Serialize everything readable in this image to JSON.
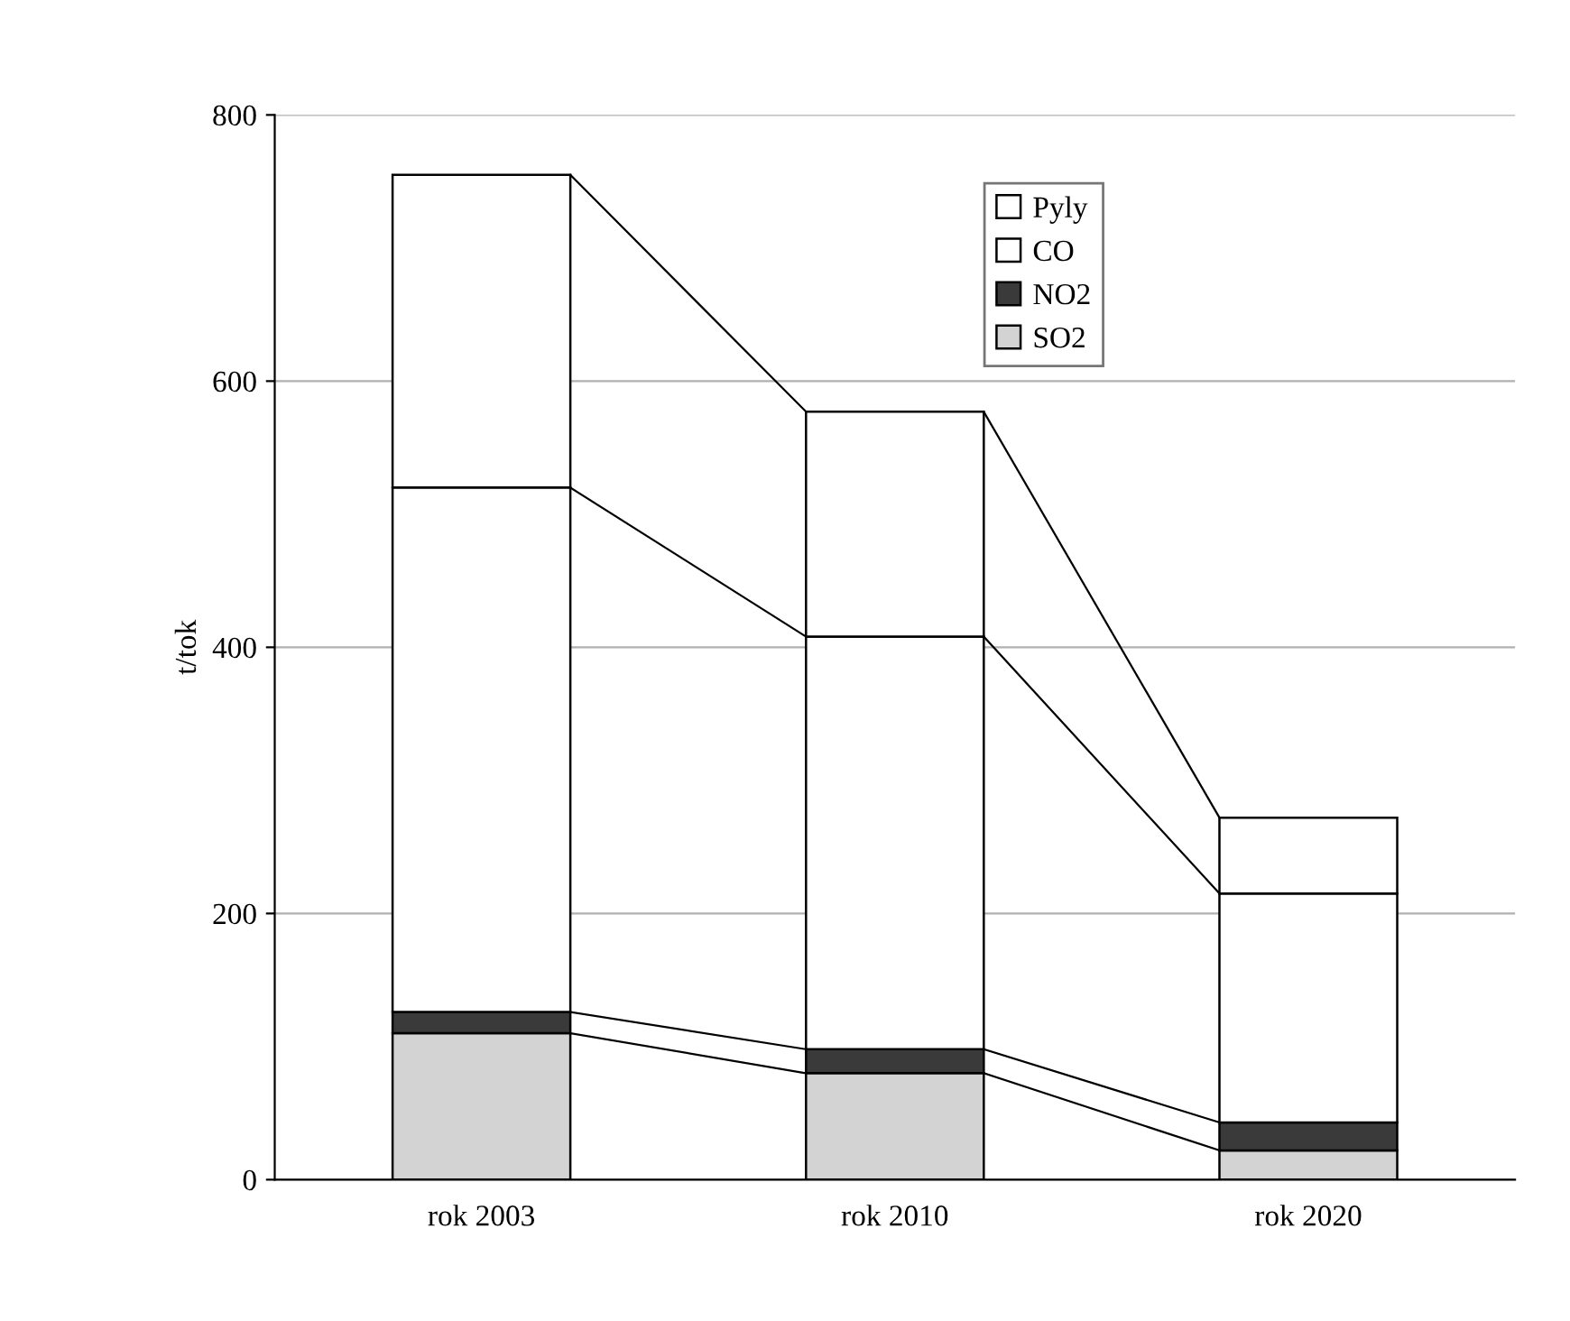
{
  "chart_data": {
    "type": "bar",
    "stacked": true,
    "ylabel": "t/tok",
    "categories": [
      "rok 2003",
      "rok 2010",
      "rok 2020"
    ],
    "series": [
      {
        "name": "SO2",
        "color": "#d3d3d3",
        "values": [
          110,
          80,
          22
        ]
      },
      {
        "name": "NO2",
        "color": "#3a3a3a",
        "values": [
          16,
          18,
          21
        ]
      },
      {
        "name": "CO",
        "color": "#ffffff",
        "values": [
          394,
          310,
          172
        ]
      },
      {
        "name": "Pyly",
        "color": "#ffffff",
        "values": [
          235,
          169,
          57
        ]
      }
    ],
    "ylim": [
      0,
      800
    ],
    "yticks": [
      0,
      200,
      400,
      600,
      800
    ],
    "grid": "y",
    "legend": "top right"
  }
}
